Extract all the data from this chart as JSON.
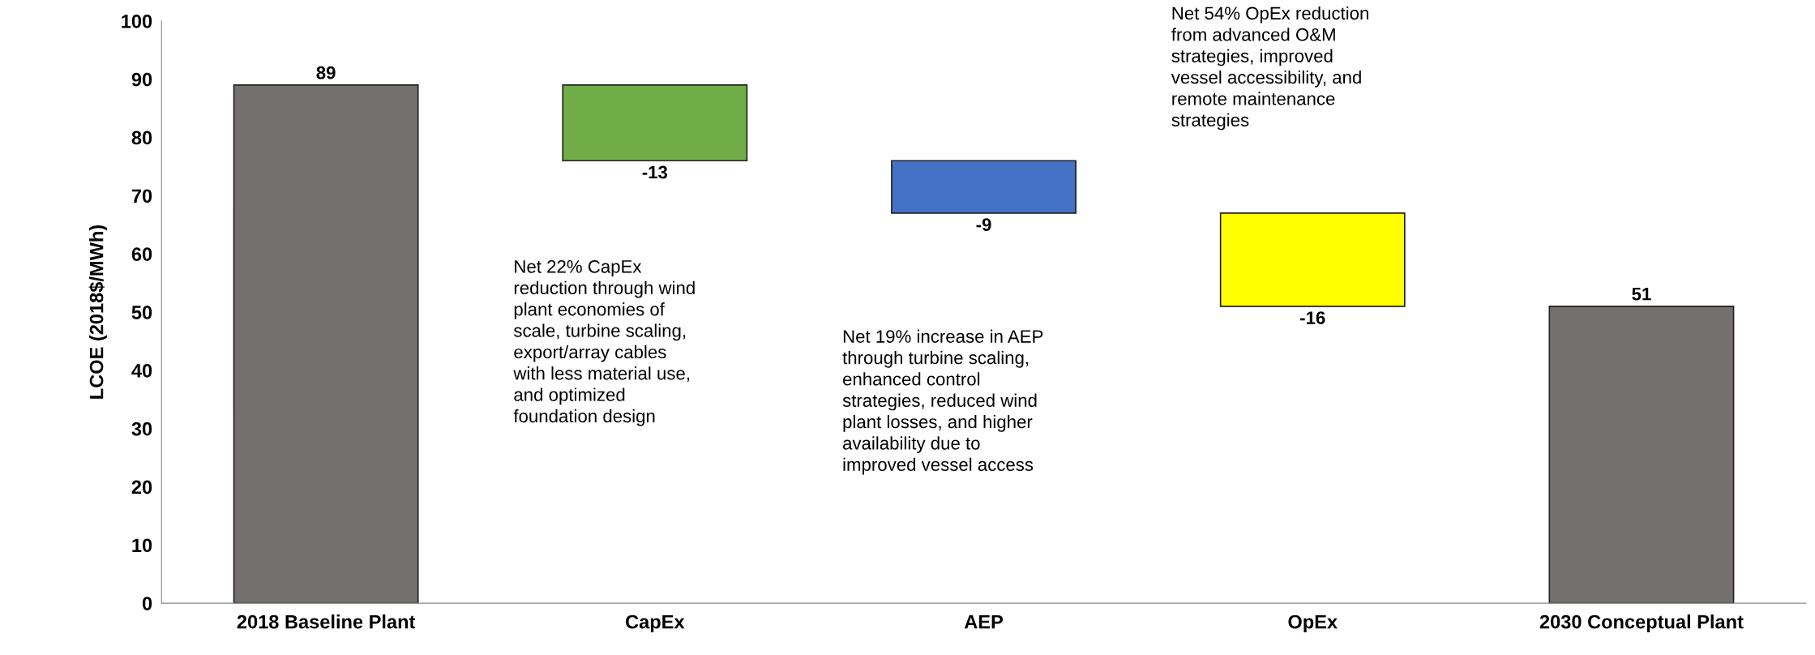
{
  "chart_data": {
    "type": "bar",
    "ylabel": "LCOE (2018$/MWh)",
    "categories": [
      "2018 Baseline Plant",
      "CapEx",
      "AEP",
      "OpEx",
      "2030 Conceptual Plant"
    ],
    "values": [
      89,
      -13,
      -9,
      -16,
      51
    ],
    "base": [
      0,
      89,
      76,
      67,
      0
    ],
    "colors": [
      "#757070",
      "#70ad47",
      "#4472c4",
      "#ffff00",
      "#757070"
    ],
    "ylim": [
      0,
      100
    ],
    "yticks": [
      0,
      10,
      20,
      30,
      40,
      50,
      60,
      70,
      80,
      90,
      100
    ],
    "data_labels": true,
    "grid": false,
    "annotations": [
      "Net 22% CapEx\nreduction through wind\nplant economies of\nscale, turbine scaling,\nexport/array cables\nwith less material use,\nand optimized\nfoundation design",
      "Net 19% increase in AEP\nthrough turbine scaling,\nenhanced control\nstrategies, reduced wind\nplant losses, and higher\navailability due to\nimproved vessel access",
      "Net 54% OpEx reduction\nfrom advanced O&M\nstrategies, improved\nvessel accessibility, and\nremote maintenance\nstrategies"
    ]
  }
}
